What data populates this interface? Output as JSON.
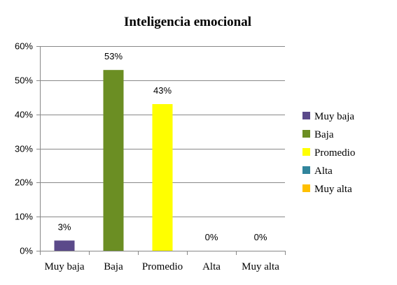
{
  "chart_data": {
    "type": "bar",
    "title": "Inteligencia emocional",
    "categories": [
      "Muy baja",
      "Baja",
      "Promedio",
      "Alta",
      "Muy alta"
    ],
    "values": [
      3,
      53,
      43,
      0,
      0
    ],
    "data_labels": [
      "3%",
      "53%",
      "43%",
      "0%",
      "0%"
    ],
    "colors": [
      "#5B4A8A",
      "#6B8E23",
      "#FFFF00",
      "#31859C",
      "#FFC000"
    ],
    "ylim": [
      0,
      60
    ],
    "yticks": [
      0,
      10,
      20,
      30,
      40,
      50,
      60
    ],
    "ytick_labels": [
      "0%",
      "10%",
      "20%",
      "30%",
      "40%",
      "50%",
      "60%"
    ],
    "grid": true,
    "legend_position": "right",
    "legend": [
      "Muy baja",
      "Baja",
      "Promedio",
      "Alta",
      "Muy alta"
    ]
  }
}
